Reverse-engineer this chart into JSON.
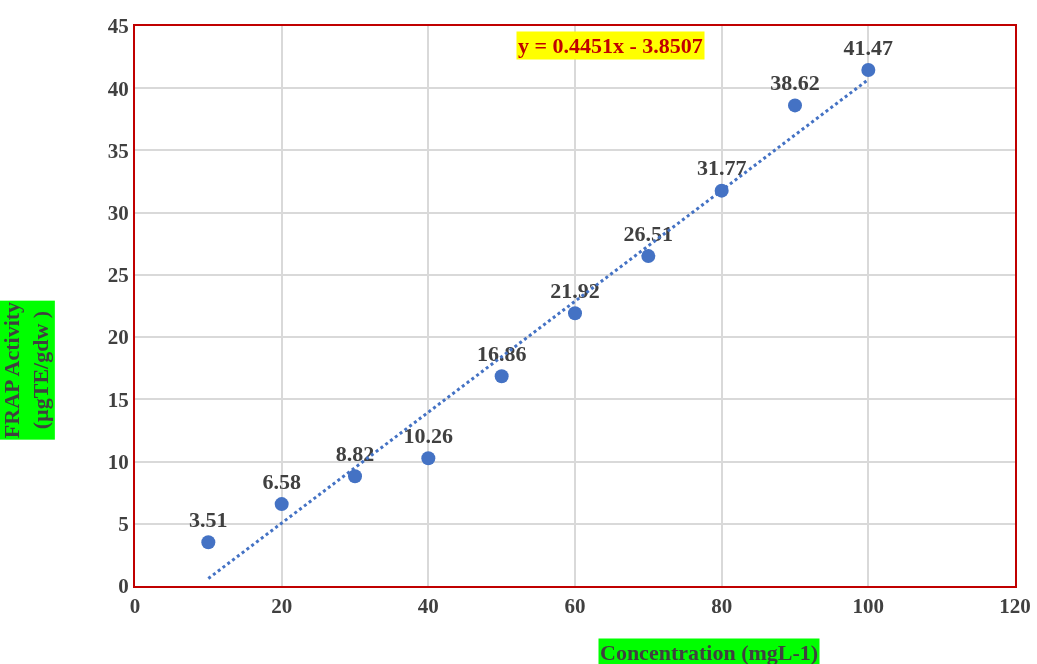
{
  "chart_data": {
    "type": "scatter",
    "xlabel": "Concentration (mgL-1)",
    "ylabel": "FRAP Activity\n(µgTE/gdw )",
    "annotations": [
      "y = 0.4451x - 3.8507"
    ],
    "xlim": [
      0,
      120
    ],
    "xticks": [
      0,
      20,
      40,
      60,
      80,
      100,
      120
    ],
    "ylim": [
      0,
      45
    ],
    "yticks": [
      0,
      5,
      10,
      15,
      20,
      25,
      30,
      35,
      40,
      45
    ],
    "grid": true,
    "marker": "circle",
    "series": [
      {
        "color": "#4472c4",
        "x": [
          10,
          20,
          30,
          40,
          50,
          60,
          70,
          80,
          90,
          100
        ],
        "values": [
          3.51,
          6.58,
          8.82,
          10.26,
          16.86,
          21.92,
          26.51,
          31.77,
          38.62,
          41.47
        ],
        "value_labels": [
          "3.51",
          "6.58",
          "8.82",
          "10.26",
          "16.86",
          "21.92",
          "26.51",
          "31.77",
          "38.62",
          "41.47"
        ]
      },
      {
        "type": "line",
        "color": "#4472c4",
        "line_style": "dotted",
        "marker": "none",
        "x": [
          10,
          100
        ],
        "values": [
          0.6,
          40.7
        ]
      }
    ]
  }
}
